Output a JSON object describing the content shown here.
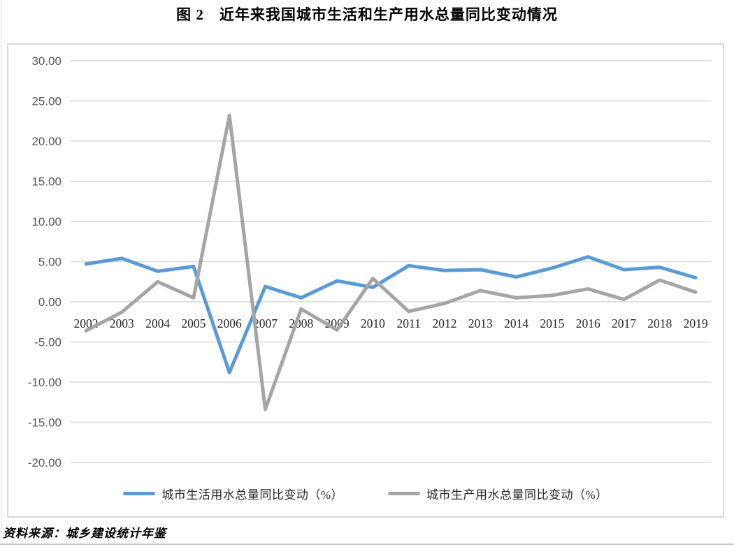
{
  "title": "图 2　近年来我国城市生活和生产用水总量同比变动情况",
  "source_note": "资料来源：城乡建设统计年鉴",
  "colors": {
    "series_domestic": "#5B9BD5",
    "series_production": "#A5A5A5",
    "gridline": "#D9D9D9",
    "y_tick_text": "#595959",
    "x_tick_text": "#262626"
  },
  "chart_data": {
    "type": "line",
    "title": "图 2　近年来我国城市生活和生产用水总量同比变动情况",
    "xlabel": "",
    "ylabel": "",
    "categories": [
      "2002",
      "2003",
      "2004",
      "2005",
      "2006",
      "2007",
      "2008",
      "2009",
      "2010",
      "2011",
      "2012",
      "2013",
      "2014",
      "2015",
      "2016",
      "2017",
      "2018",
      "2019"
    ],
    "series": [
      {
        "name": "城市生活用水总量同比变动（%）",
        "color": "#5B9BD5",
        "values": [
          4.7,
          5.4,
          3.8,
          4.4,
          -8.8,
          1.9,
          0.5,
          2.6,
          1.8,
          4.5,
          3.9,
          4.0,
          3.1,
          4.2,
          5.6,
          4.0,
          4.3,
          3.0
        ]
      },
      {
        "name": "城市生产用水总量同比变动（%）",
        "color": "#A5A5A5",
        "values": [
          -3.6,
          -1.3,
          2.5,
          0.5,
          23.2,
          -13.4,
          -0.9,
          -3.5,
          2.9,
          -1.2,
          -0.2,
          1.4,
          0.5,
          0.8,
          1.6,
          0.3,
          2.7,
          1.2
        ]
      }
    ],
    "ylim": [
      -20,
      30
    ],
    "ytick_step": 5,
    "ytick_labels": [
      "30.00",
      "25.00",
      "20.00",
      "15.00",
      "10.00",
      "5.00",
      "0.00",
      "-5.00",
      "-10.00",
      "-15.00",
      "-20.00"
    ],
    "grid": true,
    "legend_position": "bottom"
  }
}
